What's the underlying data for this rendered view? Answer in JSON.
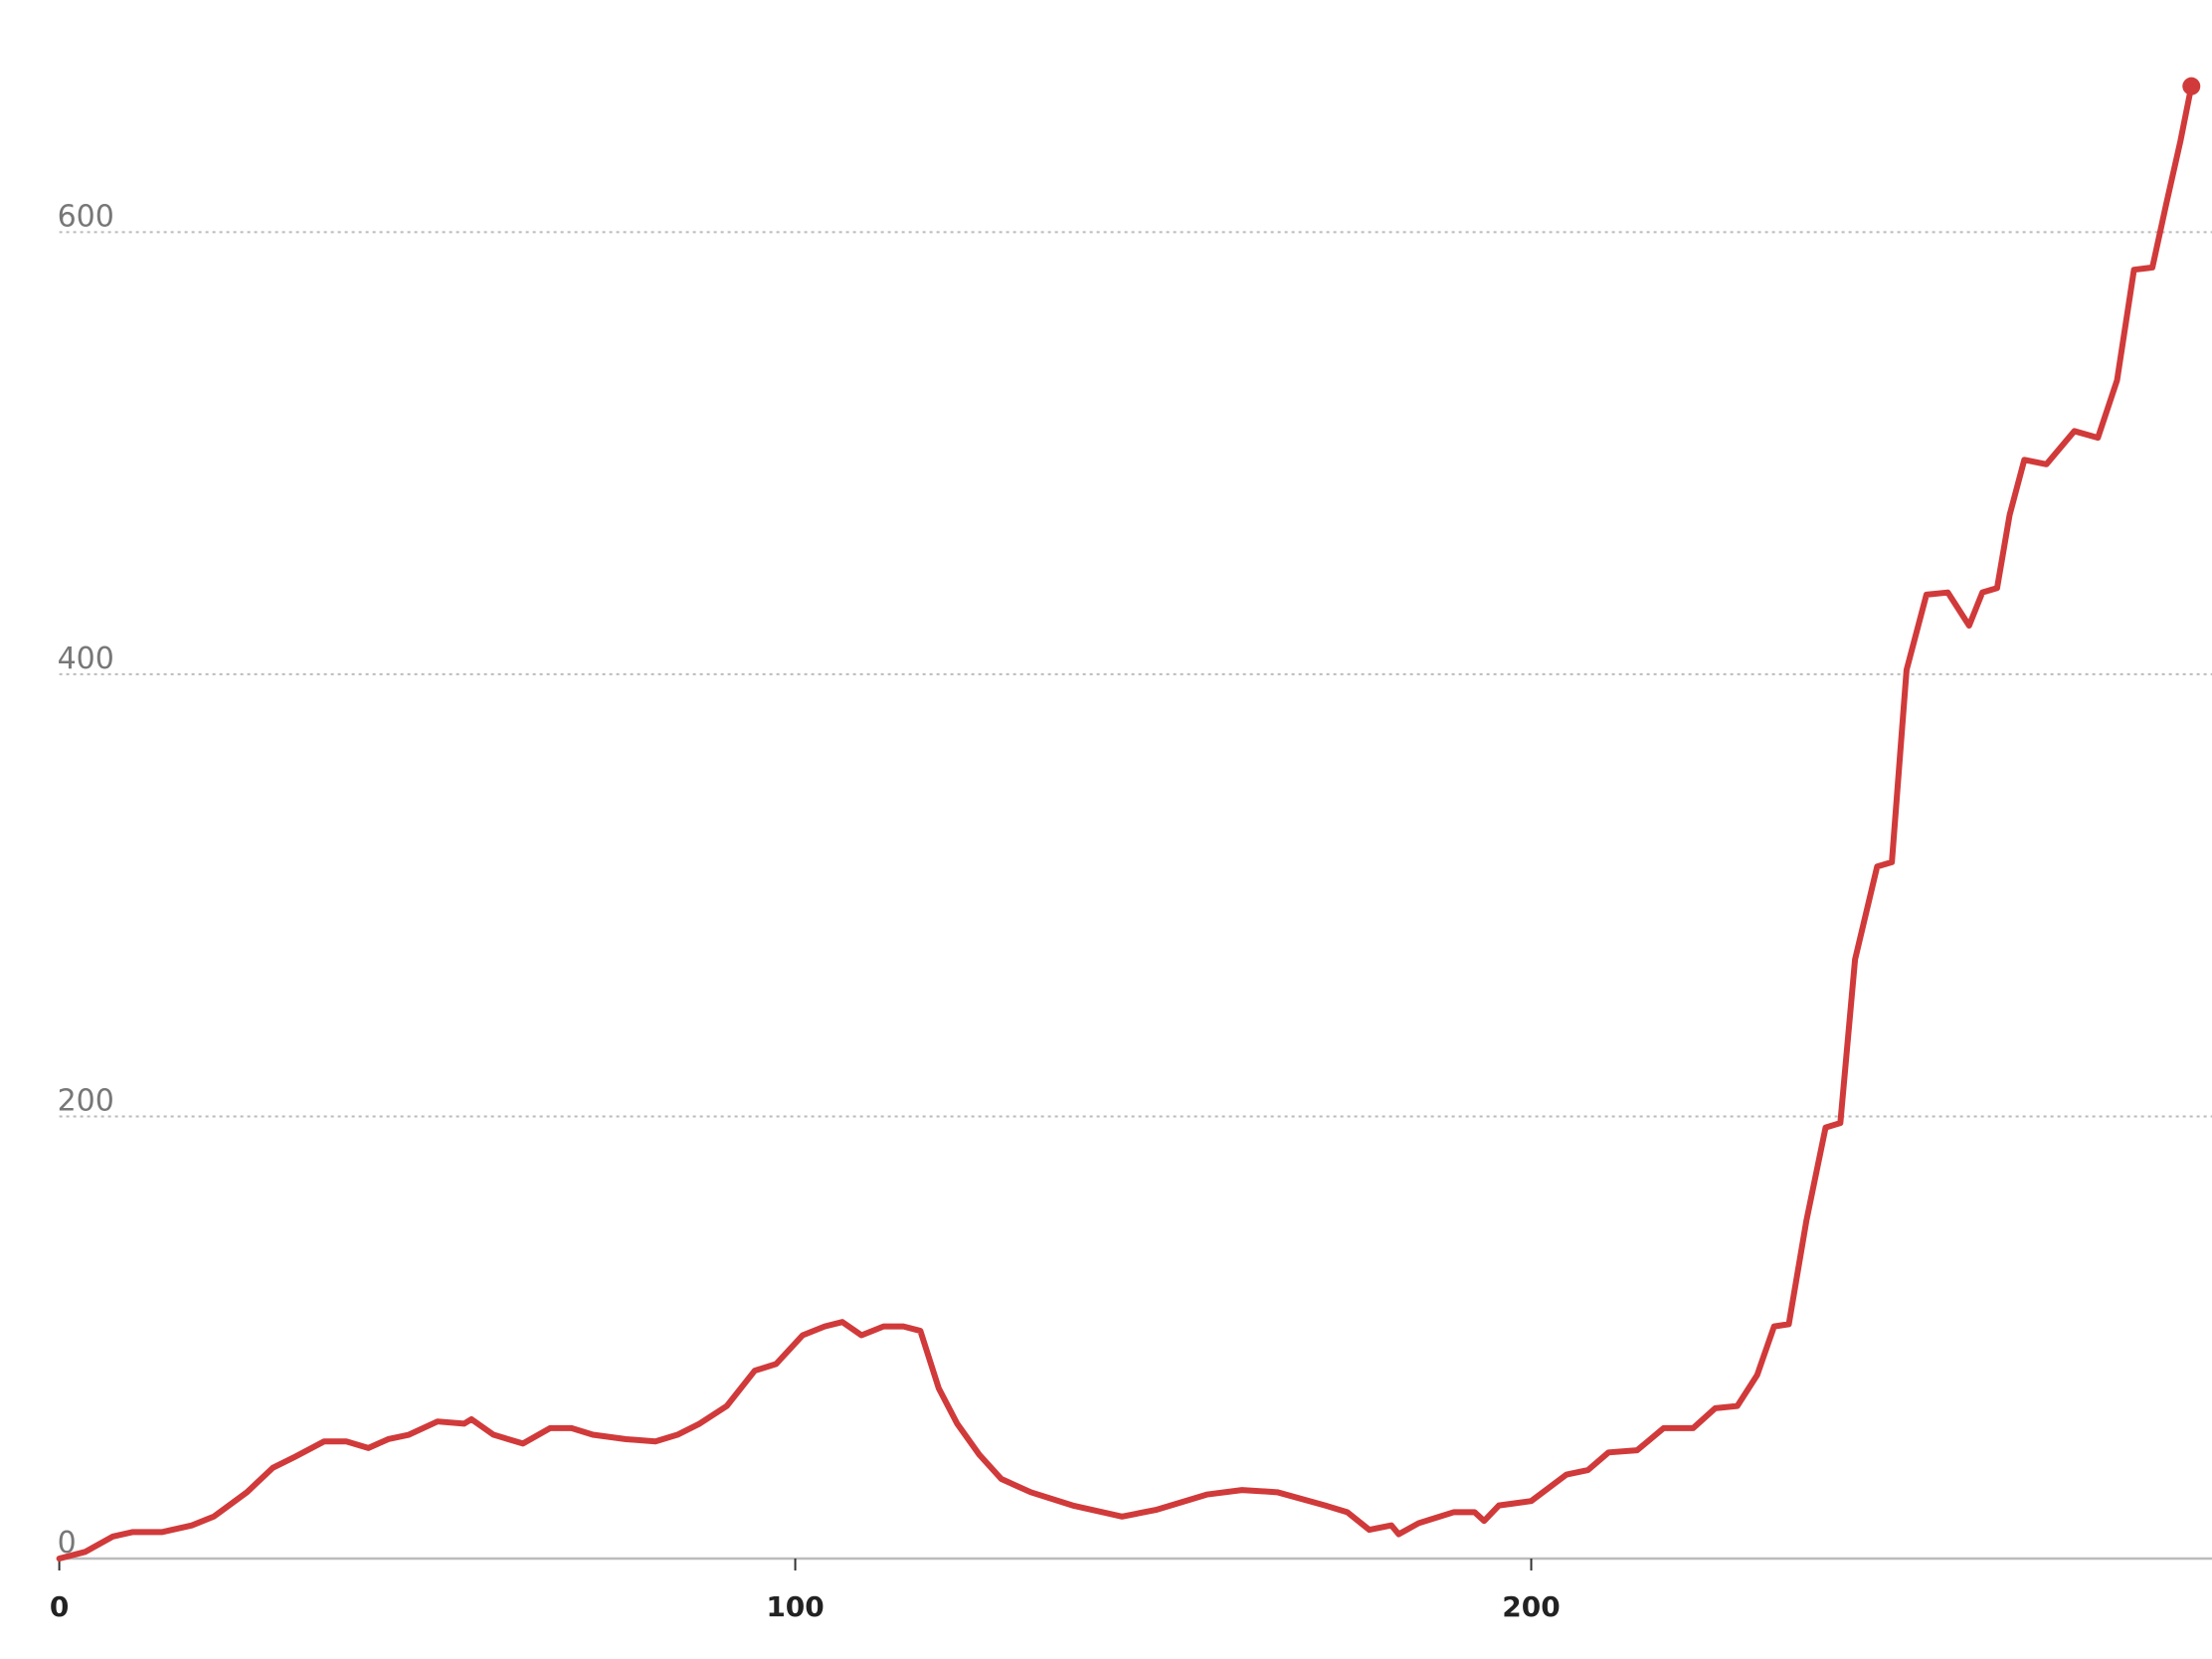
{
  "chart_data": {
    "type": "line",
    "x": [
      0,
      3.5,
      7.3,
      10,
      14,
      18,
      21,
      25.5,
      29,
      32,
      36,
      39,
      42,
      44.7,
      47.5,
      51.4,
      55,
      56,
      59,
      63,
      66.7,
      69.6,
      72.5,
      77,
      81,
      84,
      87,
      90.7,
      94.5,
      97.4,
      101,
      104,
      106.4,
      109,
      112,
      114.7,
      117,
      119.5,
      122,
      125,
      128,
      132,
      137.7,
      144.4,
      149,
      156,
      160.7,
      165.5,
      172,
      175,
      178,
      181,
      182,
      184.7,
      189.5,
      192.3,
      193.6,
      195.6,
      200,
      204.8,
      207.7,
      210.5,
      214.4,
      218,
      222,
      225,
      228,
      230.7,
      233,
      235,
      237.4,
      240,
      242,
      244,
      247,
      249,
      251,
      253.7,
      256.6,
      259.5,
      261.3,
      263.3,
      265,
      267,
      270,
      273.8,
      277,
      279.6,
      281.9,
      284.4,
      286.3,
      288.2,
      289.7
    ],
    "series": [
      {
        "color": "#d13a3a",
        "values": [
          0,
          3,
          10,
          12,
          12,
          15,
          19,
          30,
          41,
          46,
          53,
          53,
          50,
          54,
          56,
          62,
          61,
          63,
          56,
          52,
          59,
          59,
          56,
          54,
          53,
          56,
          61,
          69,
          85,
          88,
          101,
          105,
          107,
          101,
          105,
          105,
          103,
          77,
          61,
          47,
          36,
          30,
          24,
          19,
          22,
          29,
          31,
          30,
          24,
          21,
          13,
          15,
          11,
          16,
          21,
          21,
          17,
          24,
          26,
          38,
          40,
          48,
          49,
          59,
          59,
          68,
          69,
          83,
          105,
          106,
          153,
          195,
          197,
          271,
          313,
          315,
          402,
          436,
          437,
          422,
          437,
          439,
          472,
          497,
          495,
          510,
          507,
          533,
          583,
          584,
          613,
          641,
          666
        ]
      }
    ],
    "xlim": [
      0,
      292.5
    ],
    "xticks": [
      0,
      100,
      200
    ],
    "ylim": [
      0,
      705
    ],
    "yticks": [
      0,
      200,
      400,
      600
    ],
    "grid": true
  }
}
